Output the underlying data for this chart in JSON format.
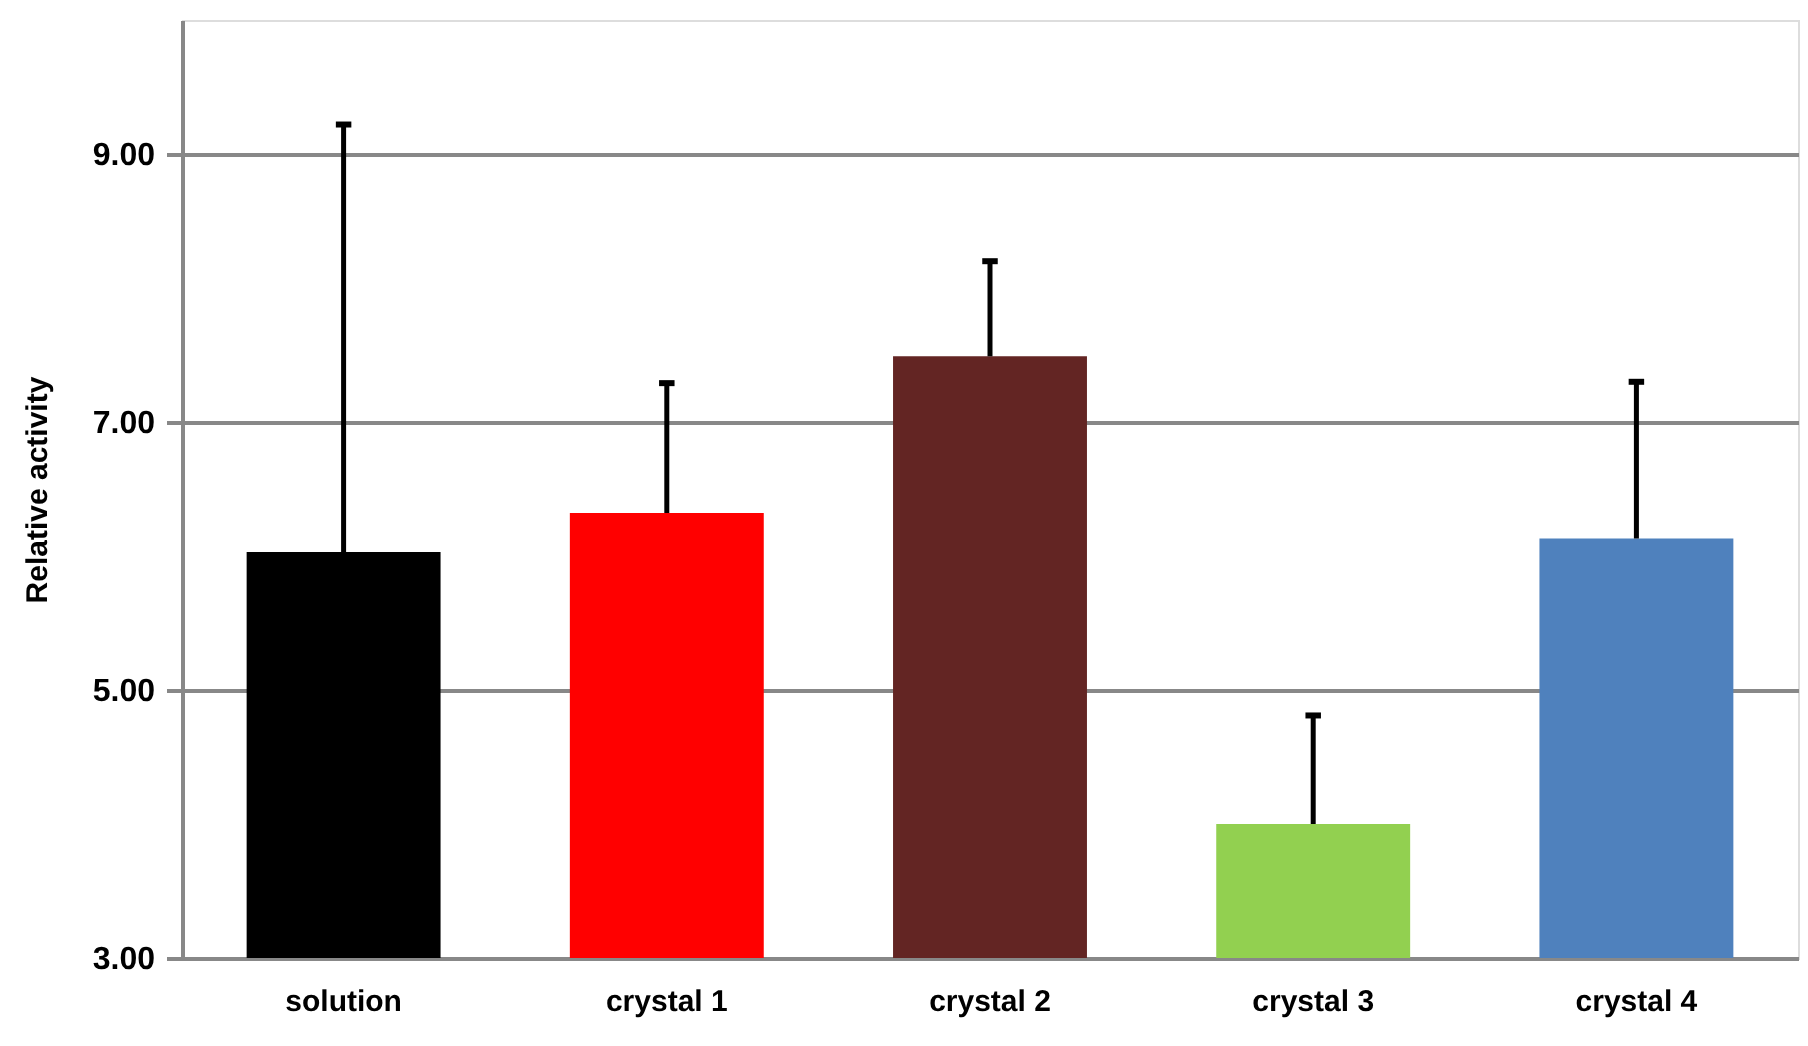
{
  "chart_data": {
    "type": "bar",
    "ylabel": "Relative activity",
    "categories": [
      "solution",
      "crystal 1",
      "crystal 2",
      "crystal 3",
      "crystal 4"
    ],
    "values": [
      6.03,
      6.32,
      7.49,
      4.0,
      6.13
    ],
    "colors": [
      "#000000",
      "#ff0000",
      "#632523",
      "#92d050",
      "#4f81bd"
    ],
    "errors": [
      [
        6.03,
        9.22
      ],
      [
        6.32,
        7.29
      ],
      [
        7.49,
        8.2
      ],
      [
        4.0,
        4.81
      ],
      [
        6.13,
        7.3
      ]
    ],
    "ylim": [
      3,
      10
    ],
    "yticks": [
      {
        "value": 3,
        "label": "3.00"
      },
      {
        "value": 5,
        "label": "5.00"
      },
      {
        "value": 7,
        "label": "7.00"
      },
      {
        "value": 9,
        "label": "9.00"
      }
    ],
    "grid": "y",
    "legend": false
  }
}
